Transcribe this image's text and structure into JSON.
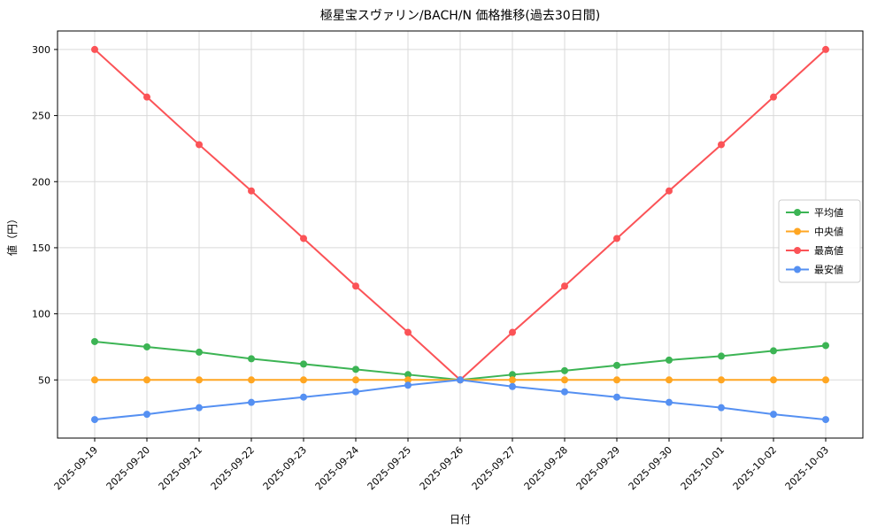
{
  "chart_data": {
    "type": "line",
    "title": "極星宝スヴァリン/BACH/N 価格推移(過去30日間)",
    "xlabel": "日付",
    "ylabel": "値（円）",
    "x": [
      "2025-09-19",
      "2025-09-20",
      "2025-09-21",
      "2025-09-22",
      "2025-09-23",
      "2025-09-24",
      "2025-09-25",
      "2025-09-26",
      "2025-09-27",
      "2025-09-28",
      "2025-09-29",
      "2025-09-30",
      "2025-10-01",
      "2025-10-02",
      "2025-10-03"
    ],
    "ylim": [
      6,
      314
    ],
    "yticks": [
      50,
      100,
      150,
      200,
      250,
      300
    ],
    "grid": true,
    "legend_position": "right",
    "marker": "circle",
    "series": [
      {
        "name": "平均値",
        "color": "#3cb454",
        "values": [
          79,
          75,
          71,
          66,
          62,
          58,
          54,
          50,
          54,
          57,
          61,
          65,
          68,
          72,
          76
        ]
      },
      {
        "name": "中央値",
        "color": "#ffa622",
        "values": [
          50,
          50,
          50,
          50,
          50,
          50,
          50,
          50,
          50,
          50,
          50,
          50,
          50,
          50,
          50
        ]
      },
      {
        "name": "最高値",
        "color": "#fb5357",
        "values": [
          300,
          264,
          228,
          193,
          157,
          121,
          86,
          50,
          86,
          121,
          157,
          193,
          228,
          264,
          300
        ]
      },
      {
        "name": "最安値",
        "color": "#5590f2",
        "values": [
          20,
          24,
          29,
          33,
          37,
          41,
          46,
          50,
          45,
          41,
          37,
          33,
          29,
          24,
          20
        ]
      }
    ]
  }
}
